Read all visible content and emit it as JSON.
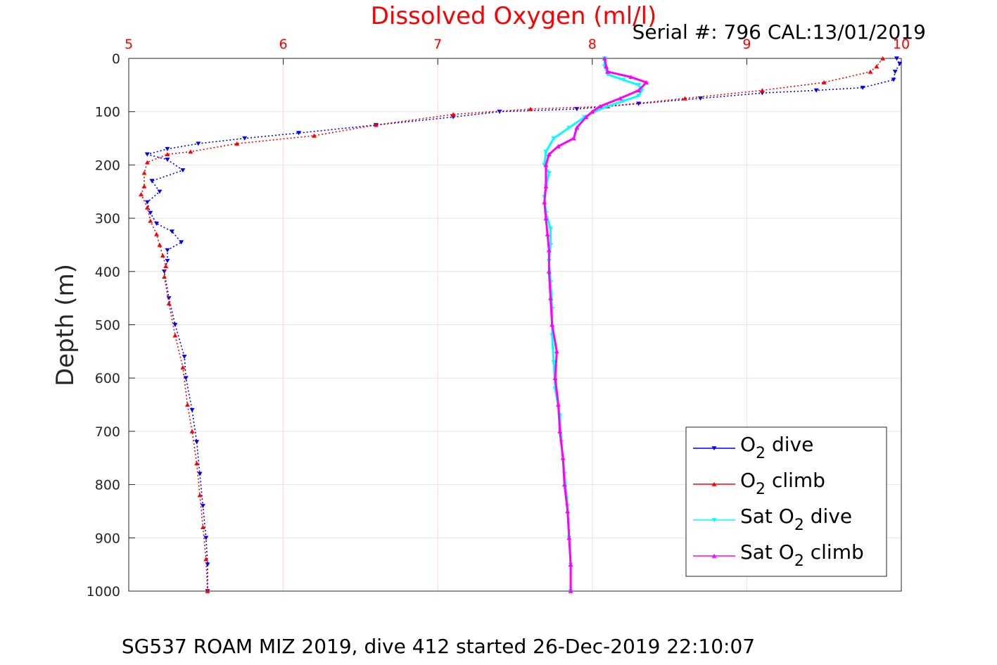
{
  "chart_data": {
    "type": "scatter",
    "title": "Dissolved Oxygen (ml/l)",
    "serial_label": "Serial #: 796  CAL:13/01/2019",
    "footer": "SG537 ROAM MIZ 2019, dive 412 started 26-Dec-2019 22:10:07",
    "ylabel": "Depth (m)",
    "xlim": [
      5,
      10
    ],
    "ylim": [
      0,
      1000
    ],
    "y_reversed": true,
    "x_axis_position": "top",
    "x_ticks": [
      "5",
      "6",
      "7",
      "8",
      "9",
      "10"
    ],
    "y_ticks": [
      "0",
      "100",
      "200",
      "300",
      "400",
      "500",
      "600",
      "700",
      "800",
      "900",
      "1000"
    ],
    "grid": true,
    "legend_position": "bottom-right",
    "colors": {
      "title": "#ff0000",
      "x_ticks": "#ff0000",
      "grid": "#ffd9dc"
    },
    "series": [
      {
        "name": "O2 dive",
        "legend_main": "O",
        "legend_sub": "2",
        "legend_rest": " dive",
        "color": "#0000ff",
        "marker": "triangle-down",
        "points": [
          [
            9.97,
            0
          ],
          [
            9.99,
            10
          ],
          [
            9.96,
            25
          ],
          [
            9.95,
            40
          ],
          [
            9.75,
            55
          ],
          [
            9.45,
            60
          ],
          [
            9.1,
            65
          ],
          [
            8.7,
            75
          ],
          [
            8.3,
            85
          ],
          [
            7.9,
            95
          ],
          [
            7.4,
            100
          ],
          [
            7.1,
            110
          ],
          [
            6.6,
            125
          ],
          [
            6.1,
            140
          ],
          [
            5.75,
            150
          ],
          [
            5.45,
            160
          ],
          [
            5.25,
            170
          ],
          [
            5.12,
            180
          ],
          [
            5.25,
            190
          ],
          [
            5.35,
            210
          ],
          [
            5.15,
            230
          ],
          [
            5.2,
            250
          ],
          [
            5.12,
            270
          ],
          [
            5.14,
            290
          ],
          [
            5.18,
            310
          ],
          [
            5.28,
            325
          ],
          [
            5.34,
            345
          ],
          [
            5.25,
            360
          ],
          [
            5.25,
            380
          ],
          [
            5.23,
            400
          ],
          [
            5.26,
            450
          ],
          [
            5.3,
            500
          ],
          [
            5.36,
            560
          ],
          [
            5.37,
            600
          ],
          [
            5.41,
            660
          ],
          [
            5.44,
            720
          ],
          [
            5.46,
            780
          ],
          [
            5.48,
            840
          ],
          [
            5.5,
            900
          ],
          [
            5.51,
            950
          ],
          [
            5.51,
            1000
          ]
        ]
      },
      {
        "name": "O2 climb",
        "legend_main": "O",
        "legend_sub": "2",
        "legend_rest": " climb",
        "color": "#ff0000",
        "marker": "triangle-up",
        "points": [
          [
            9.88,
            0
          ],
          [
            9.84,
            15
          ],
          [
            9.8,
            25
          ],
          [
            9.5,
            45
          ],
          [
            9.1,
            60
          ],
          [
            8.6,
            75
          ],
          [
            8.1,
            90
          ],
          [
            7.6,
            95
          ],
          [
            7.1,
            105
          ],
          [
            6.6,
            125
          ],
          [
            6.2,
            145
          ],
          [
            5.7,
            160
          ],
          [
            5.4,
            175
          ],
          [
            5.25,
            180
          ],
          [
            5.12,
            195
          ],
          [
            5.1,
            215
          ],
          [
            5.1,
            240
          ],
          [
            5.08,
            255
          ],
          [
            5.12,
            280
          ],
          [
            5.14,
            305
          ],
          [
            5.18,
            330
          ],
          [
            5.2,
            350
          ],
          [
            5.22,
            370
          ],
          [
            5.24,
            390
          ],
          [
            5.23,
            410
          ],
          [
            5.26,
            460
          ],
          [
            5.3,
            520
          ],
          [
            5.35,
            580
          ],
          [
            5.38,
            650
          ],
          [
            5.41,
            700
          ],
          [
            5.44,
            760
          ],
          [
            5.46,
            820
          ],
          [
            5.48,
            880
          ],
          [
            5.5,
            940
          ],
          [
            5.51,
            1000
          ]
        ]
      },
      {
        "name": "Sat O2 dive",
        "legend_main": "Sat O",
        "legend_sub": "2",
        "legend_rest": " dive",
        "color": "#00ffff",
        "marker": "triangle-down",
        "points": [
          [
            8.08,
            0
          ],
          [
            8.08,
            15
          ],
          [
            8.1,
            30
          ],
          [
            8.2,
            40
          ],
          [
            8.3,
            50
          ],
          [
            8.32,
            60
          ],
          [
            8.3,
            70
          ],
          [
            8.2,
            80
          ],
          [
            8.05,
            95
          ],
          [
            7.95,
            110
          ],
          [
            7.85,
            130
          ],
          [
            7.75,
            150
          ],
          [
            7.7,
            175
          ],
          [
            7.69,
            200
          ],
          [
            7.72,
            215
          ],
          [
            7.7,
            240
          ],
          [
            7.69,
            260
          ],
          [
            7.7,
            290
          ],
          [
            7.73,
            320
          ],
          [
            7.73,
            350
          ],
          [
            7.72,
            380
          ],
          [
            7.73,
            420
          ],
          [
            7.74,
            470
          ],
          [
            7.74,
            520
          ],
          [
            7.75,
            570
          ],
          [
            7.76,
            620
          ],
          [
            7.79,
            670
          ],
          [
            7.8,
            720
          ],
          [
            7.82,
            780
          ],
          [
            7.84,
            840
          ],
          [
            7.85,
            900
          ],
          [
            7.86,
            950
          ],
          [
            7.86,
            1000
          ]
        ]
      },
      {
        "name": "Sat O2 climb",
        "legend_main": "Sat O",
        "legend_sub": "2",
        "legend_rest": " climb",
        "color": "#ff00ff",
        "marker": "triangle-up",
        "points": [
          [
            8.08,
            0
          ],
          [
            8.09,
            15
          ],
          [
            8.1,
            25
          ],
          [
            8.25,
            35
          ],
          [
            8.35,
            45
          ],
          [
            8.3,
            60
          ],
          [
            8.18,
            75
          ],
          [
            8.05,
            90
          ],
          [
            8.0,
            100
          ],
          [
            7.96,
            110
          ],
          [
            7.9,
            130
          ],
          [
            7.88,
            150
          ],
          [
            7.78,
            165
          ],
          [
            7.72,
            180
          ],
          [
            7.7,
            200
          ],
          [
            7.7,
            240
          ],
          [
            7.69,
            270
          ],
          [
            7.7,
            300
          ],
          [
            7.71,
            330
          ],
          [
            7.72,
            360
          ],
          [
            7.72,
            400
          ],
          [
            7.73,
            450
          ],
          [
            7.74,
            500
          ],
          [
            7.77,
            550
          ],
          [
            7.76,
            600
          ],
          [
            7.78,
            650
          ],
          [
            7.79,
            700
          ],
          [
            7.81,
            750
          ],
          [
            7.82,
            800
          ],
          [
            7.84,
            850
          ],
          [
            7.85,
            900
          ],
          [
            7.86,
            950
          ],
          [
            7.86,
            1000
          ]
        ]
      }
    ]
  }
}
